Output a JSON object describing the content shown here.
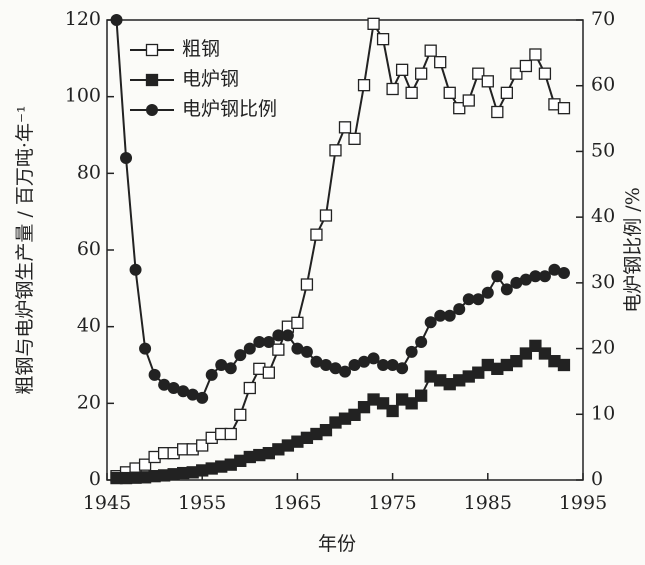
{
  "chart_data": {
    "type": "line",
    "x_label": "年份",
    "y_label": "粗钢与电炉钢生产量 / 百万吨·年⁻¹",
    "y2_label": "电炉钢比例 /%",
    "x": [
      1946,
      1947,
      1948,
      1949,
      1950,
      1951,
      1952,
      1953,
      1954,
      1955,
      1956,
      1957,
      1958,
      1959,
      1960,
      1961,
      1962,
      1963,
      1964,
      1965,
      1966,
      1967,
      1968,
      1969,
      1970,
      1971,
      1972,
      1973,
      1974,
      1975,
      1976,
      1977,
      1978,
      1979,
      1980,
      1981,
      1982,
      1983,
      1984,
      1985,
      1986,
      1987,
      1988,
      1989,
      1990,
      1991,
      1992,
      1993
    ],
    "series": [
      {
        "name": "粗钢",
        "color": "#222222",
        "marker": "square-open",
        "values": [
          1,
          2,
          3,
          4,
          6,
          7,
          7,
          8,
          8,
          9,
          11,
          12,
          12,
          17,
          24,
          29,
          28,
          34,
          40,
          41,
          51,
          64,
          69,
          86,
          92,
          89,
          103,
          119,
          115,
          102,
          107,
          101,
          106,
          112,
          109,
          101,
          97,
          99,
          106,
          104,
          96,
          101,
          106,
          108,
          111,
          106,
          98,
          97
        ]
      },
      {
        "name": "电炉钢",
        "color": "#222222",
        "marker": "square",
        "values": [
          0.5,
          0.5,
          0.6,
          0.7,
          1,
          1.2,
          1.5,
          1.8,
          2,
          2.5,
          3,
          3.5,
          4,
          5,
          6,
          6.5,
          7,
          8,
          9,
          10,
          11,
          12,
          13,
          15,
          16,
          17,
          19,
          21,
          20,
          18,
          21,
          20,
          22,
          27,
          26,
          25,
          26,
          27,
          28,
          30,
          29,
          30,
          31,
          33,
          35,
          33,
          31,
          30
        ]
      },
      {
        "name": "电炉钢比例",
        "color": "#222222",
        "marker": "circle",
        "axis": "y2",
        "values": [
          70,
          49,
          32,
          20,
          16,
          14.5,
          14,
          13.5,
          13,
          12.5,
          16,
          17.5,
          17,
          19,
          20,
          21,
          21,
          22,
          22,
          20,
          19.5,
          18,
          17.5,
          17,
          16.5,
          17.5,
          18,
          18.5,
          17.5,
          17.5,
          17,
          19.5,
          21,
          24,
          25,
          25,
          26,
          27.5,
          27.5,
          28.5,
          31,
          29,
          30,
          30.5,
          31,
          31,
          32,
          31.5
        ]
      }
    ],
    "xlim": [
      1945,
      1995
    ],
    "xticks": [
      1945,
      1955,
      1965,
      1975,
      1985,
      1995
    ],
    "ylim": [
      0,
      120
    ],
    "yticks": [
      0,
      20,
      40,
      60,
      80,
      100,
      120
    ],
    "y2lim": [
      0,
      70
    ],
    "y2ticks": [
      0,
      10,
      20,
      30,
      40,
      50,
      60,
      70
    ],
    "legend": "upper left"
  }
}
